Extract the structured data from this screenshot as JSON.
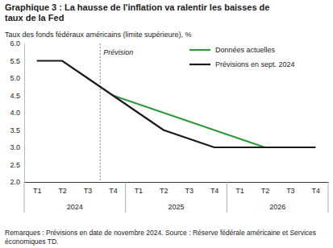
{
  "chart_data": {
    "type": "line",
    "title": "Graphique 3 : La hausse de l'inflation va ralentir les baisses de taux de la Fed",
    "subtitle": "Taux des fonds fédéraux américains (limite supérieure), %",
    "annotation": "Prévision",
    "notes": "Remarques : Prévisions en date de novembre 2024. Source : Réserve fédérale américaine et Services économiques TD.",
    "categories": [
      "T1",
      "T2",
      "T3",
      "T4",
      "T1",
      "T2",
      "T3",
      "T4",
      "T1",
      "T2",
      "T3",
      "T4"
    ],
    "x_group_labels": [
      "2024",
      "2025",
      "2026"
    ],
    "series": [
      {
        "name": "Données actuelles",
        "color": "#2e9b37",
        "values": [
          null,
          null,
          null,
          4.5,
          4.25,
          4.0,
          3.75,
          3.5,
          3.25,
          3.0,
          3.0,
          3.0
        ]
      },
      {
        "name": "Prévisions en sept. 2024",
        "color": "#1a1a1a",
        "values": [
          5.5,
          5.5,
          5.0,
          4.5,
          4.0,
          3.5,
          3.25,
          3.0,
          3.0,
          3.0,
          3.0,
          3.0
        ]
      }
    ],
    "ylim": [
      2.0,
      6.0
    ],
    "yticks": [
      {
        "value": 2.0,
        "label": "2.0"
      },
      2.5,
      {
        "value": 3.0,
        "label": "3.0"
      },
      3.5,
      {
        "value": 4.0,
        "label": "4.0"
      },
      4.5,
      {
        "value": 5.0,
        "label": "5.0"
      },
      5.5,
      {
        "value": 6.0,
        "label": "6.0"
      }
    ],
    "grid": false,
    "legend": "top-right"
  }
}
